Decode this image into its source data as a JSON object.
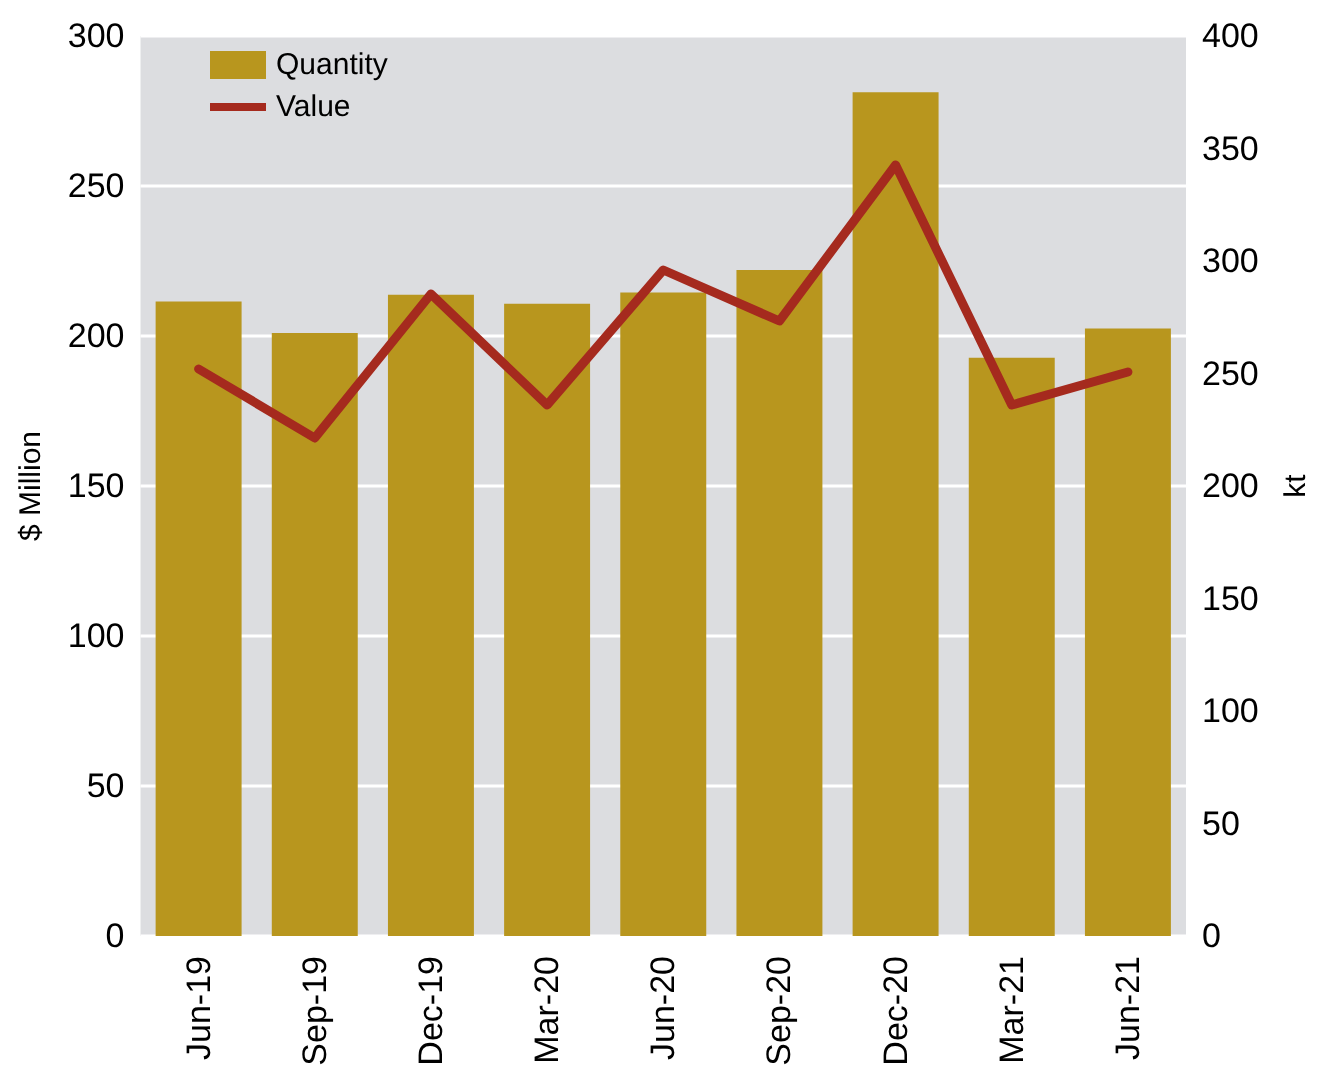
{
  "chart_data": {
    "type": "bar",
    "ylabel": "$ Million",
    "y2label": "kt",
    "categories": [
      "Jun-19",
      "Sep-19",
      "Dec-19",
      "Mar-20",
      "Jun-20",
      "Sep-20",
      "Dec-20",
      "Mar-21",
      "Jun-21"
    ],
    "series": [
      {
        "name": "Quantity",
        "axis": "y2",
        "color": "#b8961e",
        "values": [
          282,
          268,
          285,
          281,
          286,
          296,
          375,
          257,
          270
        ]
      },
      {
        "name": "Value",
        "type": "line",
        "color": "#a52a1e",
        "marker": "none",
        "line_style": "solid",
        "values": [
          189,
          166,
          214,
          177,
          222,
          205,
          257,
          177,
          188
        ]
      }
    ],
    "ylim": [
      0,
      300
    ],
    "yticks": [
      0,
      50,
      100,
      150,
      200,
      250,
      300
    ],
    "y2lim": [
      0,
      400
    ],
    "y2ticks": [
      0,
      50,
      100,
      150,
      200,
      250,
      300,
      350,
      400
    ],
    "grid": "y",
    "legend": "top left"
  }
}
